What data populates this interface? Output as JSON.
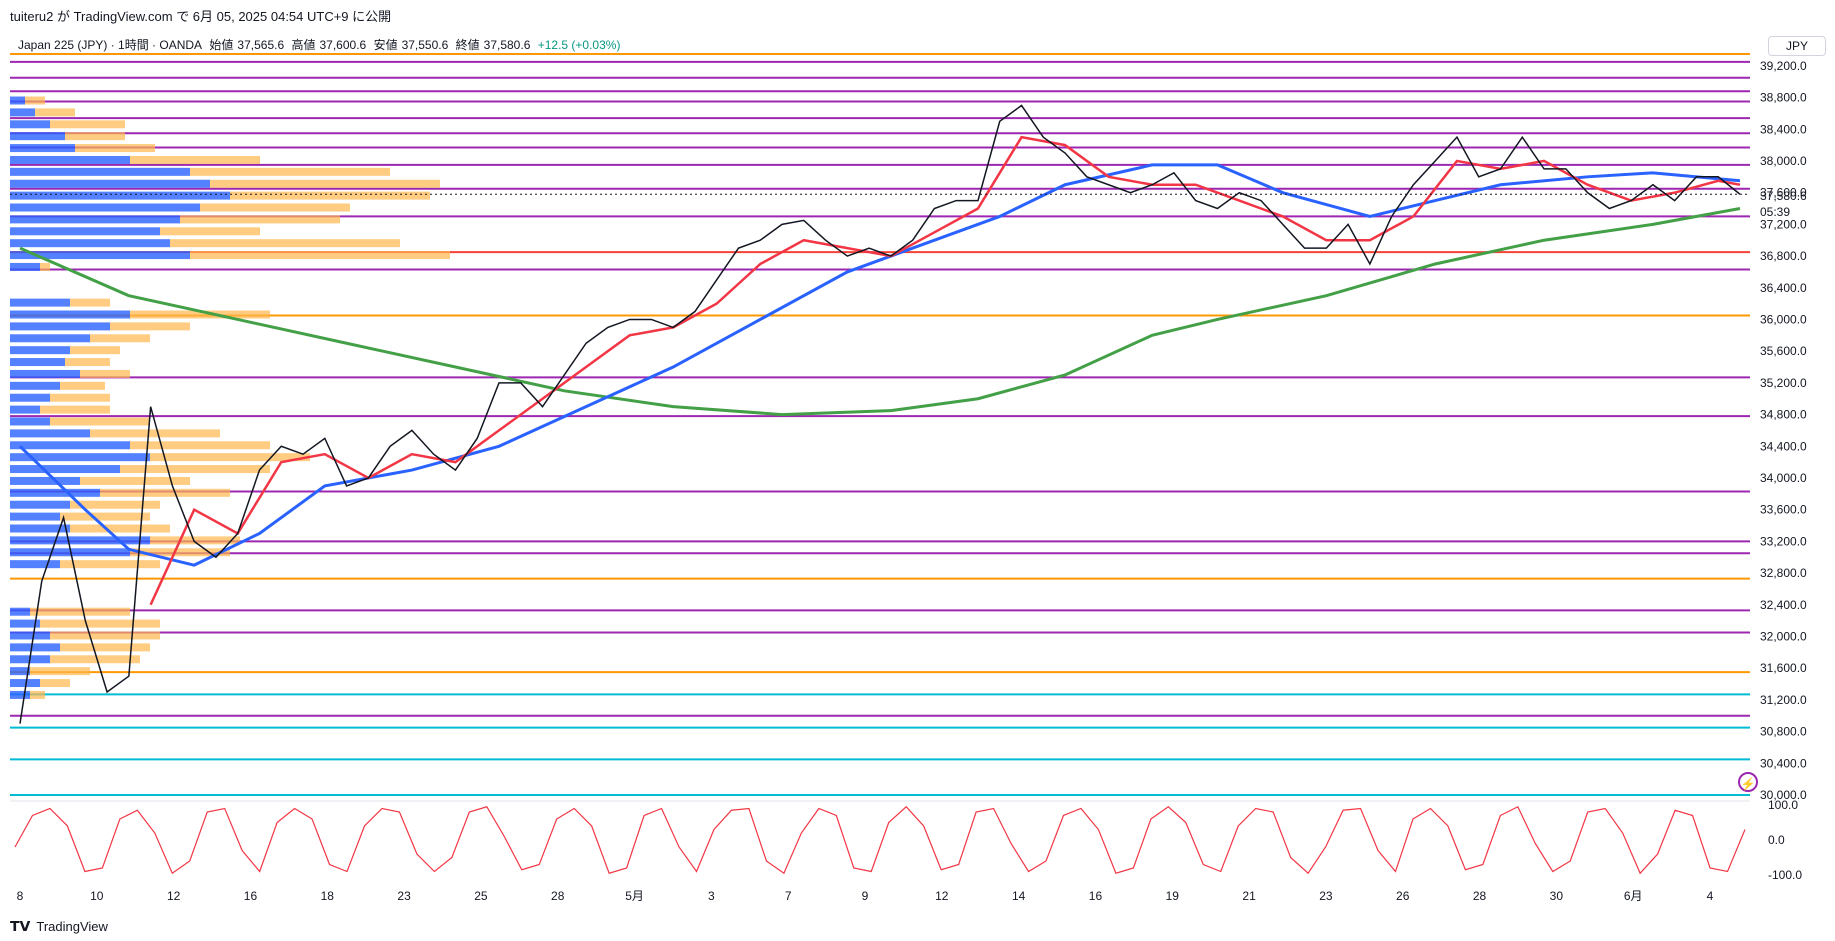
{
  "header": {
    "publish_line": "tuiteru2 が TradingView.com で 6月 05, 2025 04:54 UTC+9 に公開",
    "symbol": "Japan 225 (JPY) · 1時間 · OANDA",
    "open_label": "始値",
    "open_value": "37,565.6",
    "high_label": "高値",
    "high_value": "37,600.6",
    "low_label": "安値",
    "low_value": "37,550.6",
    "close_label": "終値",
    "close_value": "37,580.6",
    "change": "+12.5 (+0.03%)",
    "currency": "JPY"
  },
  "last_price": "37,580.6",
  "countdown": "05:39",
  "footer": {
    "brand": "TradingView"
  },
  "colors": {
    "price": "#131722",
    "ma_fast": "#f23645",
    "ma_mid": "#2962ff",
    "ma_slow": "#43a047",
    "vp_up": "#2962ff",
    "vp_down": "#ffb74d",
    "oscillator": "#f23645",
    "h_purple": "#9c27b0",
    "h_orange": "#ff9800",
    "h_red": "#f44336",
    "h_cyan": "#00bcd4"
  },
  "chart_data": {
    "type": "line",
    "title": "Japan 225 (JPY) · 1時間 · OANDA",
    "y_ticks": [
      "39,200.0",
      "38,800.0",
      "38,400.0",
      "38,000.0",
      "37,600.0",
      "37,200.0",
      "36,800.0",
      "36,400.0",
      "36,000.0",
      "35,600.0",
      "35,200.0",
      "34,800.0",
      "34,400.0",
      "34,000.0",
      "33,600.0",
      "33,200.0",
      "32,800.0",
      "32,400.0",
      "32,000.0",
      "31,600.0",
      "31,200.0",
      "30,800.0",
      "30,400.0",
      "30,000.0"
    ],
    "ylim": [
      30000,
      39400
    ],
    "x_labels": [
      "8",
      "10",
      "12",
      "16",
      "18",
      "23",
      "25",
      "28",
      "5月",
      "3",
      "7",
      "9",
      "12",
      "14",
      "16",
      "19",
      "21",
      "23",
      "26",
      "28",
      "30",
      "6月",
      "4"
    ],
    "price_series": [
      {
        "x": 0,
        "y": 30900
      },
      {
        "x": 1,
        "y": 32700
      },
      {
        "x": 2,
        "y": 33500
      },
      {
        "x": 3,
        "y": 32200
      },
      {
        "x": 4,
        "y": 31300
      },
      {
        "x": 5,
        "y": 31500
      },
      {
        "x": 6,
        "y": 34900
      },
      {
        "x": 7,
        "y": 33900
      },
      {
        "x": 8,
        "y": 33200
      },
      {
        "x": 9,
        "y": 33000
      },
      {
        "x": 10,
        "y": 33300
      },
      {
        "x": 11,
        "y": 34100
      },
      {
        "x": 12,
        "y": 34400
      },
      {
        "x": 13,
        "y": 34300
      },
      {
        "x": 14,
        "y": 34500
      },
      {
        "x": 15,
        "y": 33900
      },
      {
        "x": 16,
        "y": 34000
      },
      {
        "x": 17,
        "y": 34400
      },
      {
        "x": 18,
        "y": 34600
      },
      {
        "x": 19,
        "y": 34300
      },
      {
        "x": 20,
        "y": 34100
      },
      {
        "x": 21,
        "y": 34500
      },
      {
        "x": 22,
        "y": 35200
      },
      {
        "x": 23,
        "y": 35200
      },
      {
        "x": 24,
        "y": 34900
      },
      {
        "x": 25,
        "y": 35300
      },
      {
        "x": 26,
        "y": 35700
      },
      {
        "x": 27,
        "y": 35900
      },
      {
        "x": 28,
        "y": 36000
      },
      {
        "x": 29,
        "y": 36000
      },
      {
        "x": 30,
        "y": 35900
      },
      {
        "x": 31,
        "y": 36100
      },
      {
        "x": 32,
        "y": 36500
      },
      {
        "x": 33,
        "y": 36900
      },
      {
        "x": 34,
        "y": 37000
      },
      {
        "x": 35,
        "y": 37200
      },
      {
        "x": 36,
        "y": 37250
      },
      {
        "x": 37,
        "y": 37000
      },
      {
        "x": 38,
        "y": 36800
      },
      {
        "x": 39,
        "y": 36900
      },
      {
        "x": 40,
        "y": 36800
      },
      {
        "x": 41,
        "y": 37000
      },
      {
        "x": 42,
        "y": 37400
      },
      {
        "x": 43,
        "y": 37500
      },
      {
        "x": 44,
        "y": 37500
      },
      {
        "x": 45,
        "y": 38500
      },
      {
        "x": 46,
        "y": 38700
      },
      {
        "x": 47,
        "y": 38300
      },
      {
        "x": 48,
        "y": 38100
      },
      {
        "x": 49,
        "y": 37800
      },
      {
        "x": 50,
        "y": 37700
      },
      {
        "x": 51,
        "y": 37600
      },
      {
        "x": 52,
        "y": 37700
      },
      {
        "x": 53,
        "y": 37850
      },
      {
        "x": 54,
        "y": 37500
      },
      {
        "x": 55,
        "y": 37400
      },
      {
        "x": 56,
        "y": 37600
      },
      {
        "x": 57,
        "y": 37500
      },
      {
        "x": 58,
        "y": 37200
      },
      {
        "x": 59,
        "y": 36900
      },
      {
        "x": 60,
        "y": 36900
      },
      {
        "x": 61,
        "y": 37200
      },
      {
        "x": 62,
        "y": 36700
      },
      {
        "x": 63,
        "y": 37300
      },
      {
        "x": 64,
        "y": 37700
      },
      {
        "x": 65,
        "y": 38000
      },
      {
        "x": 66,
        "y": 38300
      },
      {
        "x": 67,
        "y": 37800
      },
      {
        "x": 68,
        "y": 37900
      },
      {
        "x": 69,
        "y": 38300
      },
      {
        "x": 70,
        "y": 37900
      },
      {
        "x": 71,
        "y": 37900
      },
      {
        "x": 72,
        "y": 37600
      },
      {
        "x": 73,
        "y": 37400
      },
      {
        "x": 74,
        "y": 37500
      },
      {
        "x": 75,
        "y": 37700
      },
      {
        "x": 76,
        "y": 37500
      },
      {
        "x": 77,
        "y": 37800
      },
      {
        "x": 78,
        "y": 37800
      },
      {
        "x": 79,
        "y": 37580
      }
    ],
    "ma_fast": [
      {
        "x": 6,
        "y": 32400
      },
      {
        "x": 8,
        "y": 33600
      },
      {
        "x": 10,
        "y": 33300
      },
      {
        "x": 12,
        "y": 34200
      },
      {
        "x": 14,
        "y": 34300
      },
      {
        "x": 16,
        "y": 34000
      },
      {
        "x": 18,
        "y": 34300
      },
      {
        "x": 20,
        "y": 34200
      },
      {
        "x": 22,
        "y": 34600
      },
      {
        "x": 24,
        "y": 35000
      },
      {
        "x": 26,
        "y": 35400
      },
      {
        "x": 28,
        "y": 35800
      },
      {
        "x": 30,
        "y": 35900
      },
      {
        "x": 32,
        "y": 36200
      },
      {
        "x": 34,
        "y": 36700
      },
      {
        "x": 36,
        "y": 37000
      },
      {
        "x": 38,
        "y": 36900
      },
      {
        "x": 40,
        "y": 36800
      },
      {
        "x": 42,
        "y": 37100
      },
      {
        "x": 44,
        "y": 37400
      },
      {
        "x": 46,
        "y": 38300
      },
      {
        "x": 48,
        "y": 38200
      },
      {
        "x": 50,
        "y": 37800
      },
      {
        "x": 52,
        "y": 37700
      },
      {
        "x": 54,
        "y": 37700
      },
      {
        "x": 56,
        "y": 37500
      },
      {
        "x": 58,
        "y": 37300
      },
      {
        "x": 60,
        "y": 37000
      },
      {
        "x": 62,
        "y": 37000
      },
      {
        "x": 64,
        "y": 37300
      },
      {
        "x": 66,
        "y": 38000
      },
      {
        "x": 68,
        "y": 37900
      },
      {
        "x": 70,
        "y": 38000
      },
      {
        "x": 72,
        "y": 37700
      },
      {
        "x": 74,
        "y": 37500
      },
      {
        "x": 76,
        "y": 37600
      },
      {
        "x": 78,
        "y": 37750
      },
      {
        "x": 79,
        "y": 37700
      }
    ],
    "ma_mid": [
      {
        "x": 0,
        "y": 34400
      },
      {
        "x": 3,
        "y": 33600
      },
      {
        "x": 5,
        "y": 33100
      },
      {
        "x": 8,
        "y": 32900
      },
      {
        "x": 11,
        "y": 33300
      },
      {
        "x": 14,
        "y": 33900
      },
      {
        "x": 18,
        "y": 34100
      },
      {
        "x": 22,
        "y": 34400
      },
      {
        "x": 26,
        "y": 34900
      },
      {
        "x": 30,
        "y": 35400
      },
      {
        "x": 34,
        "y": 36000
      },
      {
        "x": 38,
        "y": 36600
      },
      {
        "x": 42,
        "y": 37000
      },
      {
        "x": 45,
        "y": 37300
      },
      {
        "x": 48,
        "y": 37700
      },
      {
        "x": 52,
        "y": 37950
      },
      {
        "x": 55,
        "y": 37950
      },
      {
        "x": 58,
        "y": 37600
      },
      {
        "x": 62,
        "y": 37300
      },
      {
        "x": 65,
        "y": 37500
      },
      {
        "x": 68,
        "y": 37700
      },
      {
        "x": 72,
        "y": 37800
      },
      {
        "x": 75,
        "y": 37850
      },
      {
        "x": 79,
        "y": 37750
      }
    ],
    "ma_slow": [
      {
        "x": 0,
        "y": 36900
      },
      {
        "x": 5,
        "y": 36300
      },
      {
        "x": 10,
        "y": 36000
      },
      {
        "x": 15,
        "y": 35700
      },
      {
        "x": 20,
        "y": 35400
      },
      {
        "x": 25,
        "y": 35100
      },
      {
        "x": 30,
        "y": 34900
      },
      {
        "x": 35,
        "y": 34800
      },
      {
        "x": 40,
        "y": 34850
      },
      {
        "x": 44,
        "y": 35000
      },
      {
        "x": 48,
        "y": 35300
      },
      {
        "x": 52,
        "y": 35800
      },
      {
        "x": 55,
        "y": 36000
      },
      {
        "x": 60,
        "y": 36300
      },
      {
        "x": 65,
        "y": 36700
      },
      {
        "x": 70,
        "y": 37000
      },
      {
        "x": 75,
        "y": 37200
      },
      {
        "x": 79,
        "y": 37400
      }
    ],
    "horizontal_levels": [
      {
        "y": 39350,
        "color": "h_orange"
      },
      {
        "y": 39250,
        "color": "h_purple"
      },
      {
        "y": 39050,
        "color": "h_purple"
      },
      {
        "y": 38880,
        "color": "h_purple"
      },
      {
        "y": 38750,
        "color": "h_purple"
      },
      {
        "y": 38540,
        "color": "h_purple"
      },
      {
        "y": 38350,
        "color": "h_purple"
      },
      {
        "y": 38170,
        "color": "h_purple"
      },
      {
        "y": 37950,
        "color": "h_purple"
      },
      {
        "y": 37650,
        "color": "h_purple"
      },
      {
        "y": 37300,
        "color": "h_purple"
      },
      {
        "y": 36850,
        "color": "h_red"
      },
      {
        "y": 36630,
        "color": "h_purple"
      },
      {
        "y": 36050,
        "color": "h_orange"
      },
      {
        "y": 35270,
        "color": "h_purple"
      },
      {
        "y": 34780,
        "color": "h_purple"
      },
      {
        "y": 33830,
        "color": "h_purple"
      },
      {
        "y": 33200,
        "color": "h_purple"
      },
      {
        "y": 33050,
        "color": "h_purple"
      },
      {
        "y": 32730,
        "color": "h_orange"
      },
      {
        "y": 32330,
        "color": "h_purple"
      },
      {
        "y": 32050,
        "color": "h_purple"
      },
      {
        "y": 31550,
        "color": "h_orange"
      },
      {
        "y": 31270,
        "color": "h_cyan"
      },
      {
        "y": 31000,
        "color": "h_purple"
      },
      {
        "y": 30850,
        "color": "h_cyan"
      },
      {
        "y": 30450,
        "color": "h_cyan"
      },
      {
        "y": 30000,
        "color": "h_cyan"
      }
    ],
    "volume_profile": [
      {
        "y": 38750,
        "up": 15,
        "down": 20
      },
      {
        "y": 38600,
        "up": 25,
        "down": 40
      },
      {
        "y": 38450,
        "up": 40,
        "down": 75
      },
      {
        "y": 38300,
        "up": 55,
        "down": 60
      },
      {
        "y": 38150,
        "up": 65,
        "down": 80
      },
      {
        "y": 38000,
        "up": 120,
        "down": 130
      },
      {
        "y": 37850,
        "up": 180,
        "down": 200
      },
      {
        "y": 37700,
        "up": 200,
        "down": 230
      },
      {
        "y": 37550,
        "up": 220,
        "down": 200
      },
      {
        "y": 37400,
        "up": 190,
        "down": 150
      },
      {
        "y": 37250,
        "up": 170,
        "down": 160
      },
      {
        "y": 37100,
        "up": 150,
        "down": 100
      },
      {
        "y": 36950,
        "up": 160,
        "down": 230
      },
      {
        "y": 36800,
        "up": 180,
        "down": 260
      },
      {
        "y": 36650,
        "up": 30,
        "down": 10
      },
      {
        "y": 36200,
        "up": 60,
        "down": 40
      },
      {
        "y": 36050,
        "up": 120,
        "down": 140
      },
      {
        "y": 35900,
        "up": 100,
        "down": 80
      },
      {
        "y": 35750,
        "up": 80,
        "down": 60
      },
      {
        "y": 35600,
        "up": 60,
        "down": 50
      },
      {
        "y": 35450,
        "up": 55,
        "down": 45
      },
      {
        "y": 35300,
        "up": 70,
        "down": 50
      },
      {
        "y": 35150,
        "up": 50,
        "down": 45
      },
      {
        "y": 35000,
        "up": 40,
        "down": 60
      },
      {
        "y": 34850,
        "up": 30,
        "down": 70
      },
      {
        "y": 34700,
        "up": 40,
        "down": 100
      },
      {
        "y": 34550,
        "up": 80,
        "down": 130
      },
      {
        "y": 34400,
        "up": 120,
        "down": 140
      },
      {
        "y": 34250,
        "up": 140,
        "down": 160
      },
      {
        "y": 34100,
        "up": 110,
        "down": 150
      },
      {
        "y": 33950,
        "up": 70,
        "down": 110
      },
      {
        "y": 33800,
        "up": 90,
        "down": 130
      },
      {
        "y": 33650,
        "up": 60,
        "down": 90
      },
      {
        "y": 33500,
        "up": 50,
        "down": 90
      },
      {
        "y": 33350,
        "up": 60,
        "down": 100
      },
      {
        "y": 33200,
        "up": 140,
        "down": 90
      },
      {
        "y": 33050,
        "up": 120,
        "down": 100
      },
      {
        "y": 32900,
        "up": 50,
        "down": 100
      },
      {
        "y": 32300,
        "up": 20,
        "down": 100
      },
      {
        "y": 32150,
        "up": 30,
        "down": 120
      },
      {
        "y": 32000,
        "up": 40,
        "down": 110
      },
      {
        "y": 31850,
        "up": 50,
        "down": 90
      },
      {
        "y": 31700,
        "up": 40,
        "down": 90
      },
      {
        "y": 31550,
        "up": 20,
        "down": 60
      },
      {
        "y": 31400,
        "up": 30,
        "down": 30
      },
      {
        "y": 31250,
        "up": 20,
        "down": 15
      }
    ],
    "oscillator": {
      "ylim": [
        -100,
        100
      ],
      "ticks": [
        "100.0",
        "0.0",
        "-100.0"
      ],
      "values": [
        -20,
        70,
        90,
        40,
        -90,
        -80,
        60,
        85,
        20,
        -95,
        -60,
        80,
        90,
        -30,
        -90,
        50,
        90,
        60,
        -70,
        -90,
        40,
        90,
        80,
        -40,
        -90,
        -50,
        80,
        95,
        10,
        -85,
        -70,
        60,
        90,
        40,
        -95,
        -80,
        70,
        90,
        -20,
        -90,
        30,
        85,
        90,
        -60,
        -95,
        20,
        90,
        70,
        -80,
        -90,
        50,
        95,
        40,
        -85,
        -70,
        80,
        90,
        -10,
        -90,
        -60,
        70,
        90,
        30,
        -95,
        -80,
        60,
        95,
        50,
        -70,
        -90,
        40,
        90,
        80,
        -50,
        -95,
        -20,
        85,
        90,
        -30,
        -90,
        60,
        90,
        40,
        -85,
        -70,
        70,
        95,
        -10,
        -90,
        -60,
        80,
        90,
        20,
        -95,
        -40,
        85,
        70,
        -80,
        -90,
        30
      ]
    }
  }
}
